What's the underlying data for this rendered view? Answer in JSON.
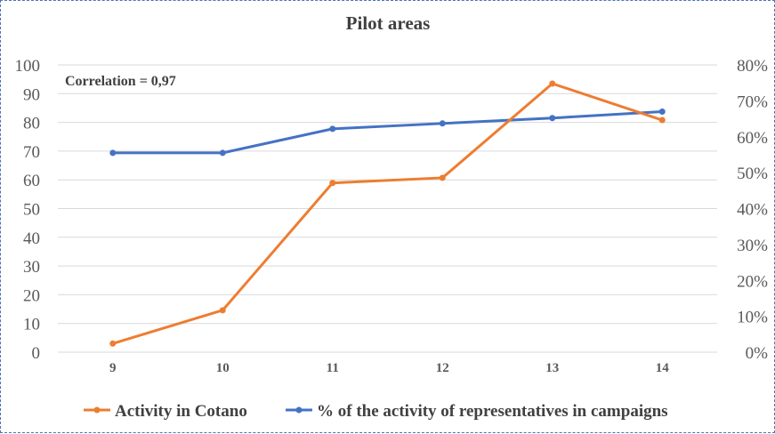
{
  "chart_data": {
    "type": "line",
    "title": "Pilot areas",
    "annotation": "Correlation = 0,97",
    "categories": [
      "9",
      "10",
      "11",
      "12",
      "13",
      "14"
    ],
    "y_left": {
      "ticks": [
        "0",
        "10",
        "20",
        "30",
        "40",
        "50",
        "60",
        "70",
        "80",
        "90",
        "100"
      ],
      "ylim": [
        0,
        100
      ]
    },
    "y_right": {
      "ticks": [
        "0%",
        "10%",
        "20%",
        "30%",
        "40%",
        "50%",
        "60%",
        "70%",
        "80%"
      ],
      "ylim": [
        0,
        0.8
      ]
    },
    "grid": true,
    "legend_position": "bottom",
    "series": [
      {
        "name": "Activity in Cotano",
        "axis": "left",
        "color": "#ed7d31",
        "values": [
          3,
          14.6,
          58.9,
          60.7,
          93.5,
          80.8
        ]
      },
      {
        "name": "% of the activity of representatives in campaigns",
        "axis": "right",
        "color": "#4472c4",
        "values": [
          0.555,
          0.555,
          0.622,
          0.637,
          0.652,
          0.67
        ]
      }
    ]
  }
}
